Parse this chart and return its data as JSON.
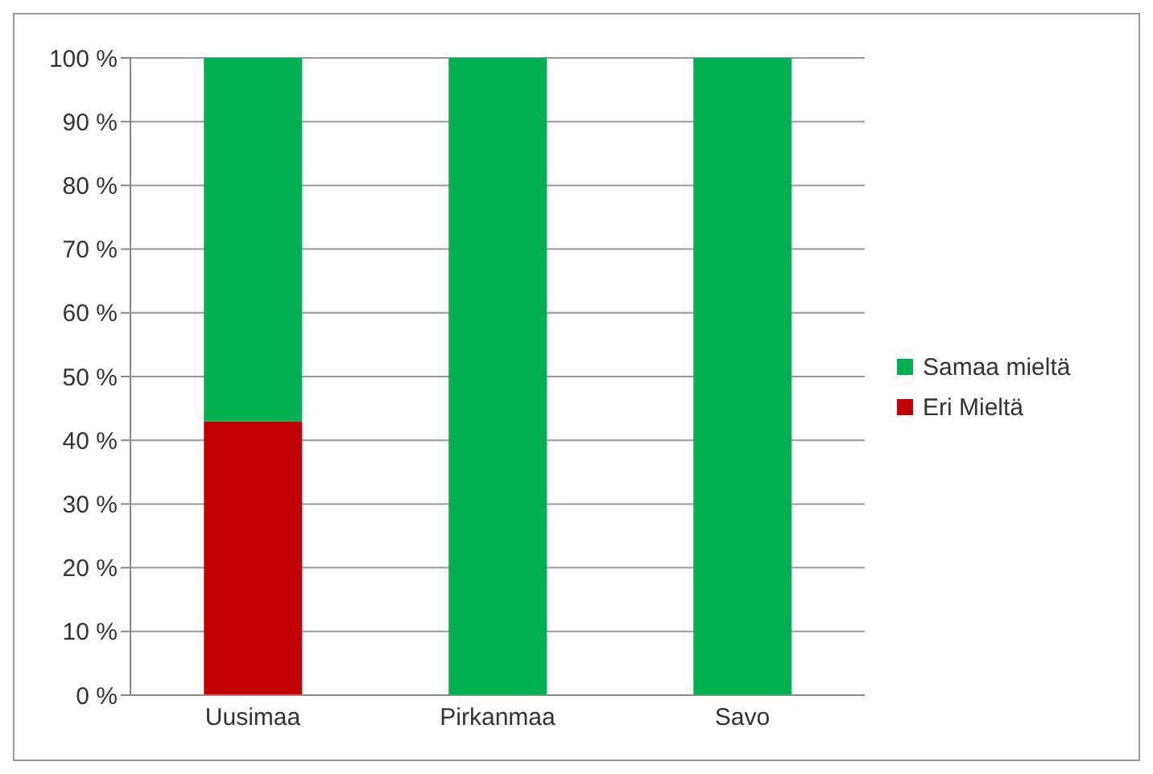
{
  "chart_data": {
    "type": "bar",
    "stacked": true,
    "categories": [
      "Uusimaa",
      "Pirkanmaa",
      "Savo"
    ],
    "series": [
      {
        "name": "Eri Mieltä",
        "color": "#c00000",
        "values": [
          43,
          0,
          0
        ]
      },
      {
        "name": "Samaa mieltä",
        "color": "#00b050",
        "values": [
          57,
          100,
          100
        ]
      }
    ],
    "ylim": [
      0,
      100
    ],
    "yticks": [
      {
        "value": 0,
        "label": "0 %"
      },
      {
        "value": 10,
        "label": "10 %"
      },
      {
        "value": 20,
        "label": "20 %"
      },
      {
        "value": 30,
        "label": "30 %"
      },
      {
        "value": 40,
        "label": "40 %"
      },
      {
        "value": 50,
        "label": "50 %"
      },
      {
        "value": 60,
        "label": "60 %"
      },
      {
        "value": 70,
        "label": "70 %"
      },
      {
        "value": 80,
        "label": "80 %"
      },
      {
        "value": 90,
        "label": "90 %"
      },
      {
        "value": 100,
        "label": "100 %"
      }
    ],
    "grid": "y",
    "legend": "right"
  }
}
